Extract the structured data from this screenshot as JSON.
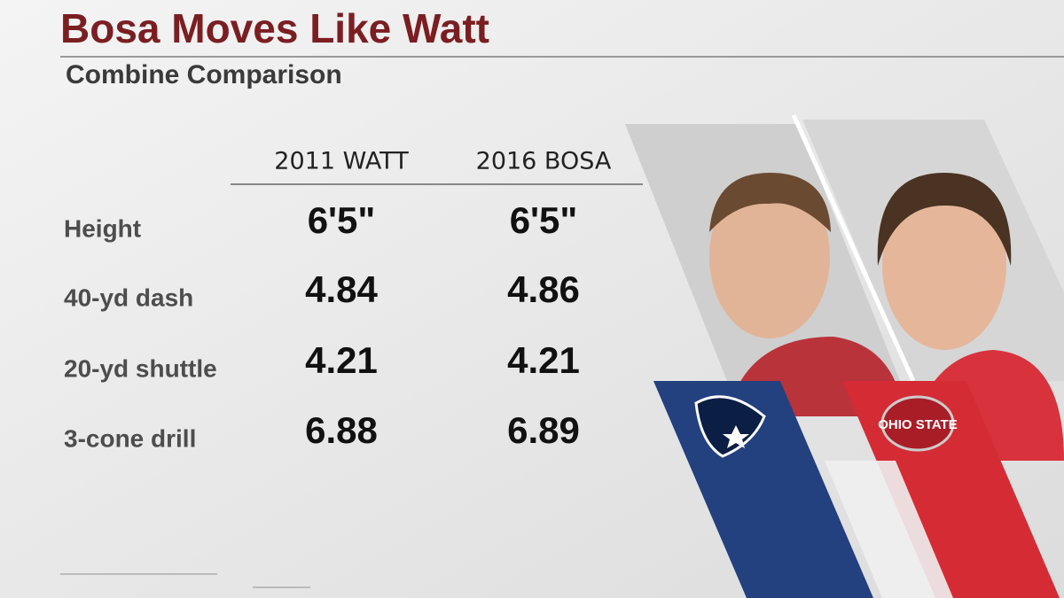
{
  "header": {
    "title": "Bosa Moves Like Watt",
    "subtitle": "Combine Comparison"
  },
  "table": {
    "columns": [
      "2011 WATT",
      "2016 BOSA"
    ],
    "rows": [
      [
        "Height",
        "6'5\"",
        "6'5\""
      ],
      [
        "40-yd dash",
        "4.84",
        "4.86"
      ],
      [
        "20-yd shuttle",
        "4.21",
        "4.21"
      ],
      [
        "3-cone drill",
        "6.88",
        "6.89"
      ]
    ]
  },
  "logos": {
    "college": "OHIO STATE"
  }
}
